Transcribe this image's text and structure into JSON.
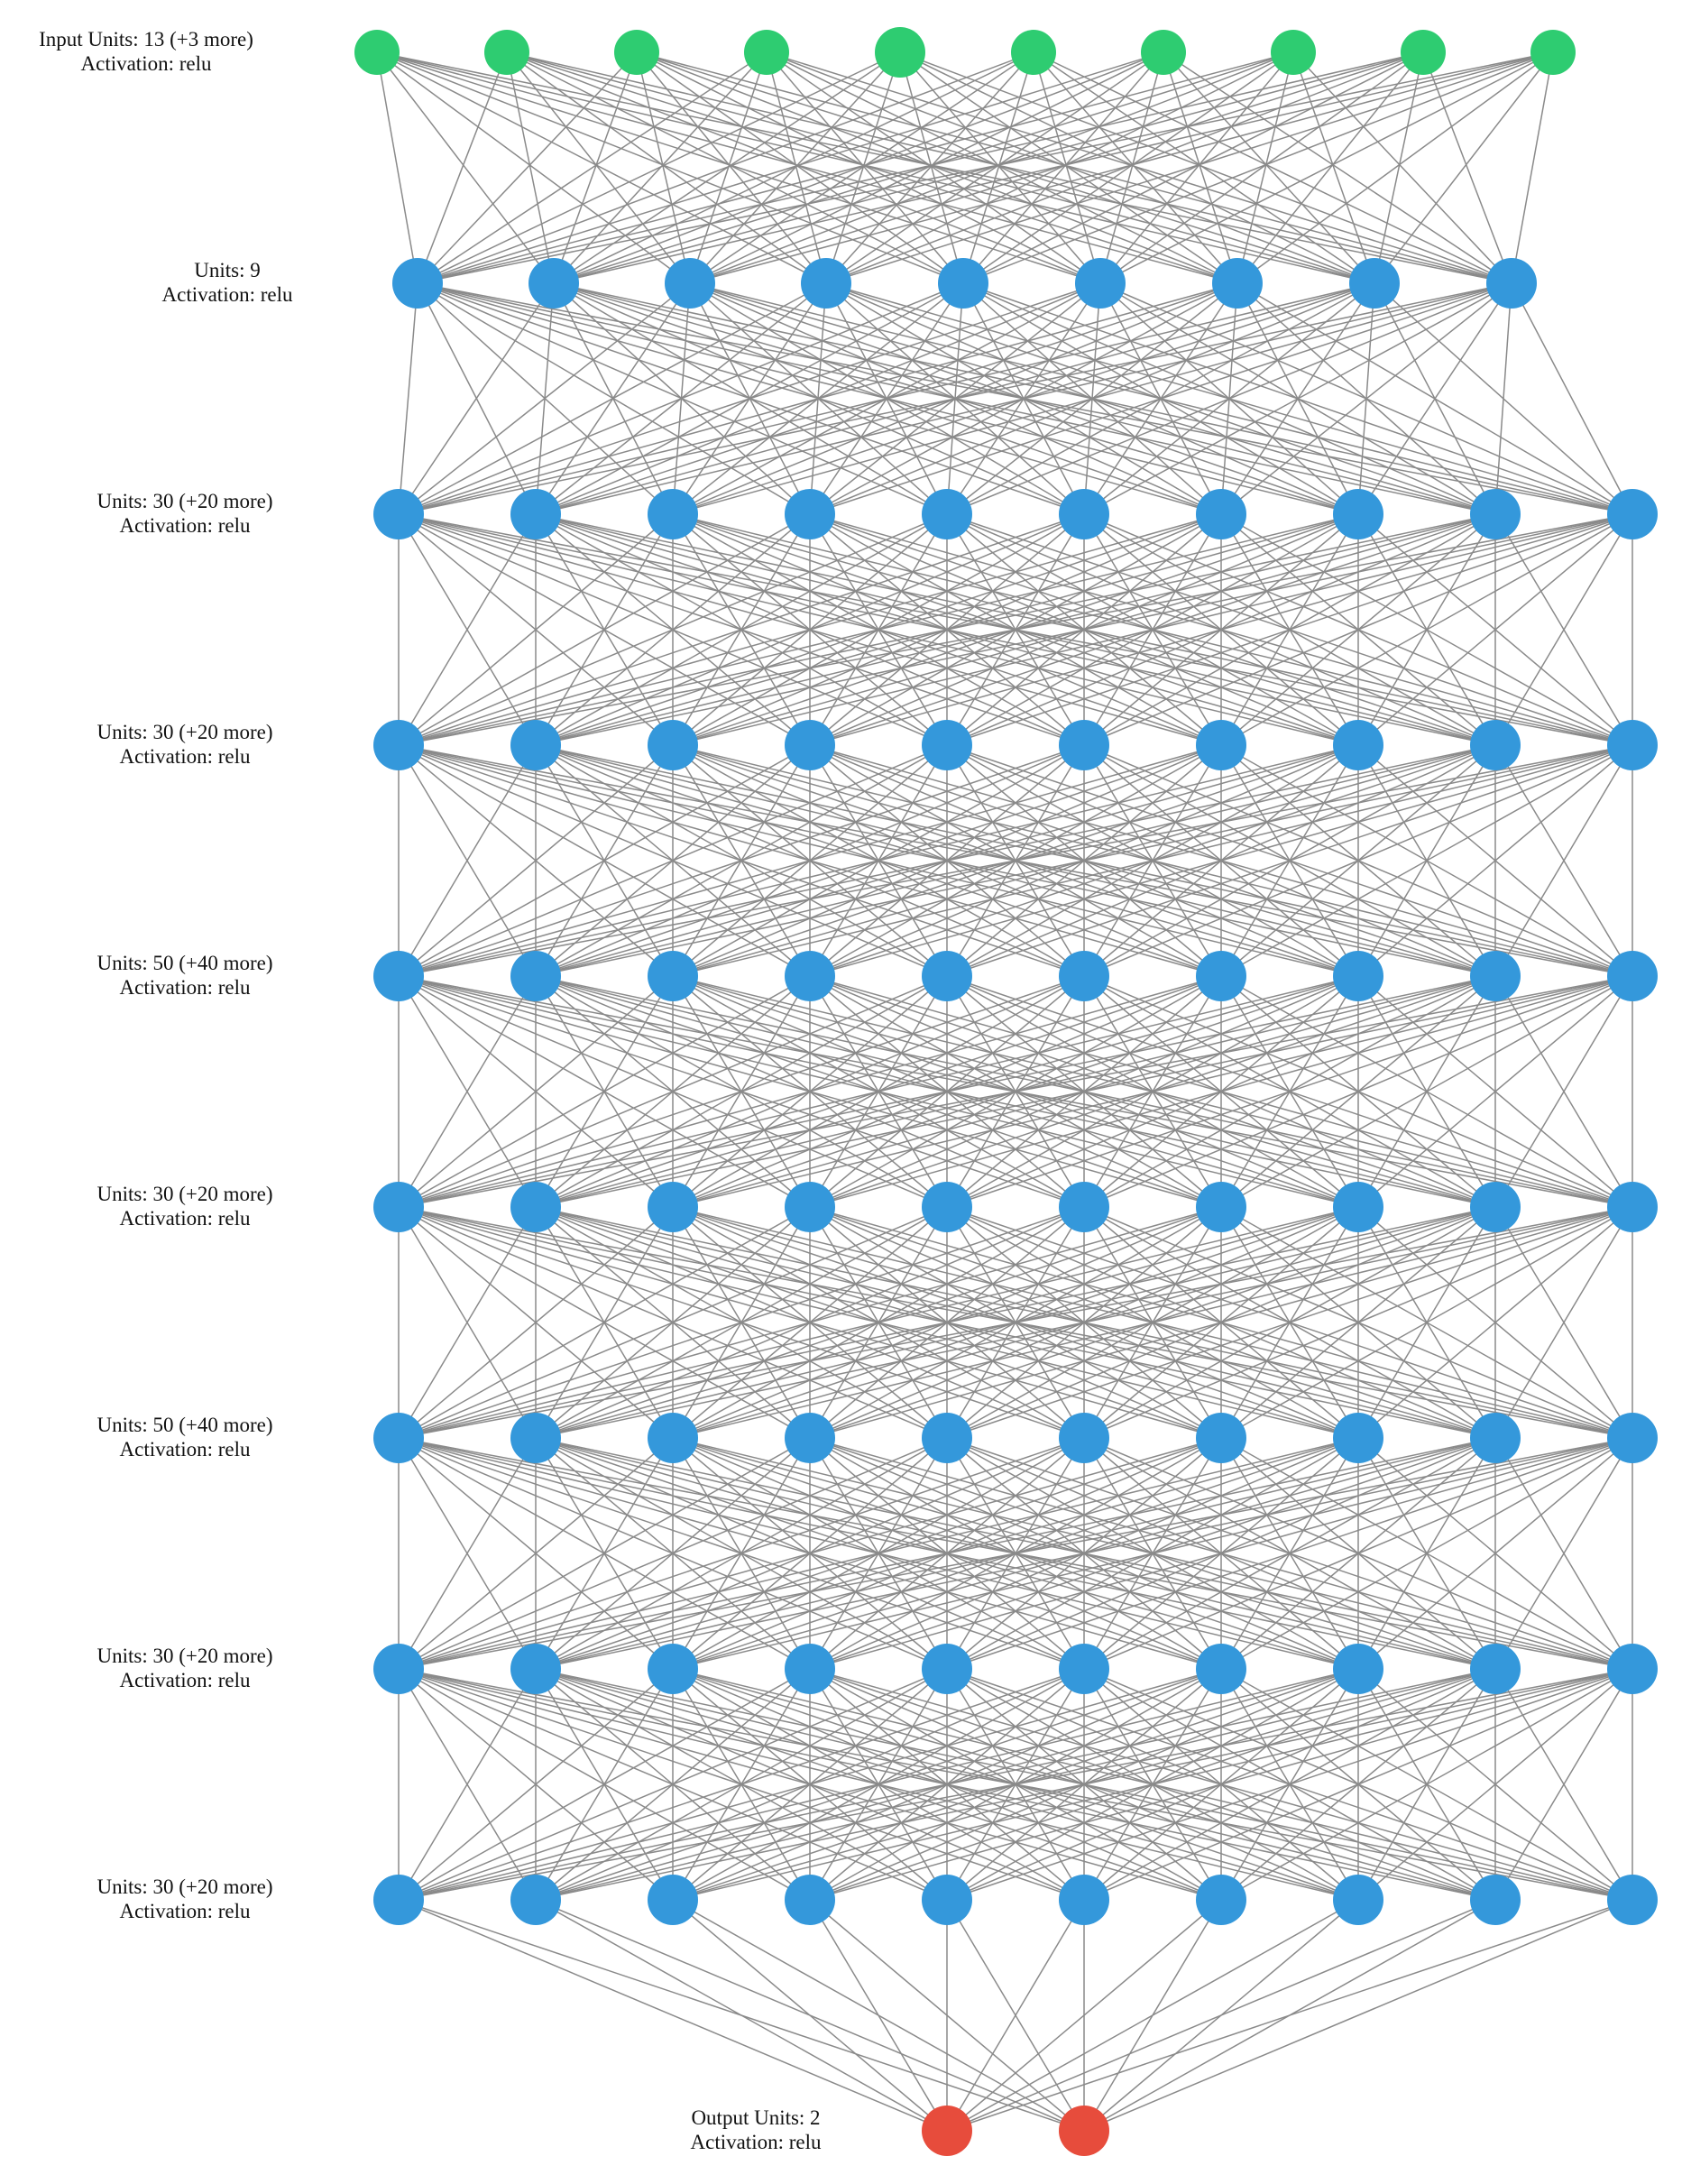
{
  "colors": {
    "input_node": "#2ecc71",
    "hidden_node": "#3498db",
    "output_node": "#e74c3c",
    "edge": "#8a8a8a",
    "background": "#ffffff"
  },
  "layers": [
    {
      "role": "input",
      "label_line1": "Input Units: 13 (+3 more)",
      "label_line2": "Activation: relu",
      "shown_nodes": 10
    },
    {
      "role": "hidden",
      "label_line1": "Units: 9",
      "label_line2": "Activation: relu",
      "shown_nodes": 9
    },
    {
      "role": "hidden",
      "label_line1": "Units: 30 (+20 more)",
      "label_line2": "Activation: relu",
      "shown_nodes": 10
    },
    {
      "role": "hidden",
      "label_line1": "Units: 30 (+20 more)",
      "label_line2": "Activation: relu",
      "shown_nodes": 10
    },
    {
      "role": "hidden",
      "label_line1": "Units: 50 (+40 more)",
      "label_line2": "Activation: relu",
      "shown_nodes": 10
    },
    {
      "role": "hidden",
      "label_line1": "Units: 30 (+20 more)",
      "label_line2": "Activation: relu",
      "shown_nodes": 10
    },
    {
      "role": "hidden",
      "label_line1": "Units: 50 (+40 more)",
      "label_line2": "Activation: relu",
      "shown_nodes": 10
    },
    {
      "role": "hidden",
      "label_line1": "Units: 30 (+20 more)",
      "label_line2": "Activation: relu",
      "shown_nodes": 10
    },
    {
      "role": "hidden",
      "label_line1": "Units: 30 (+20 more)",
      "label_line2": "Activation: relu",
      "shown_nodes": 10
    },
    {
      "role": "output",
      "label_line1": "Output Units: 2",
      "label_line2": "Activation: relu",
      "shown_nodes": 2
    }
  ]
}
